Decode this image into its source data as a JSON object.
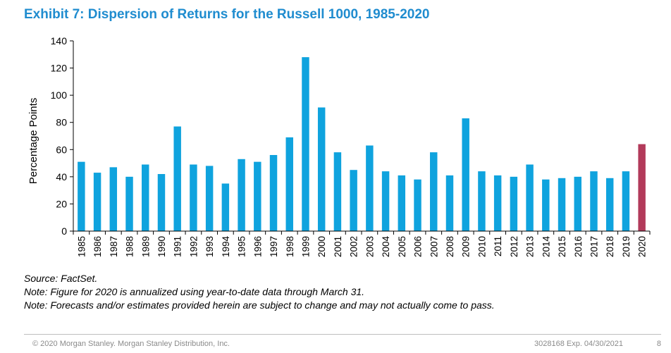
{
  "title": "Exhibit 7: Dispersion of Returns for the Russell 1000, 1985-2020",
  "notes": [
    "Source: FactSet.",
    "Note: Figure for 2020 is annualized using year-to-date data through March 31.",
    "Note: Forecasts and/or estimates provided herein are subject to change and may not actually come to pass."
  ],
  "footer": {
    "copyright": "© 2020 Morgan Stanley. Morgan Stanley Distribution, Inc.",
    "code": "3028168 Exp. 04/30/2021",
    "page": "8"
  },
  "colors": {
    "title": "#1f8ccf",
    "bar": "#0fa3de",
    "highlight": "#b23a5a"
  },
  "chart_data": {
    "type": "bar",
    "title": "",
    "xlabel": "",
    "ylabel": "Percentage Points",
    "ylim": [
      0,
      140
    ],
    "yticks": [
      0,
      20,
      40,
      60,
      80,
      100,
      120,
      140
    ],
    "grid": false,
    "categories": [
      "1985",
      "1986",
      "1987",
      "1988",
      "1989",
      "1990",
      "1991",
      "1992",
      "1993",
      "1994",
      "1995",
      "1996",
      "1997",
      "1998",
      "1999",
      "2000",
      "2001",
      "2002",
      "2003",
      "2004",
      "2005",
      "2006",
      "2007",
      "2008",
      "2009",
      "2010",
      "2011",
      "2012",
      "2013",
      "2014",
      "2015",
      "2016",
      "2017",
      "2018",
      "2019",
      "2020"
    ],
    "values": [
      51,
      43,
      47,
      40,
      49,
      42,
      77,
      49,
      48,
      35,
      53,
      51,
      56,
      69,
      128,
      91,
      58,
      45,
      63,
      44,
      41,
      38,
      58,
      41,
      83,
      44,
      41,
      40,
      49,
      38,
      39,
      40,
      44,
      39,
      44,
      64
    ],
    "highlight_category": "2020"
  }
}
